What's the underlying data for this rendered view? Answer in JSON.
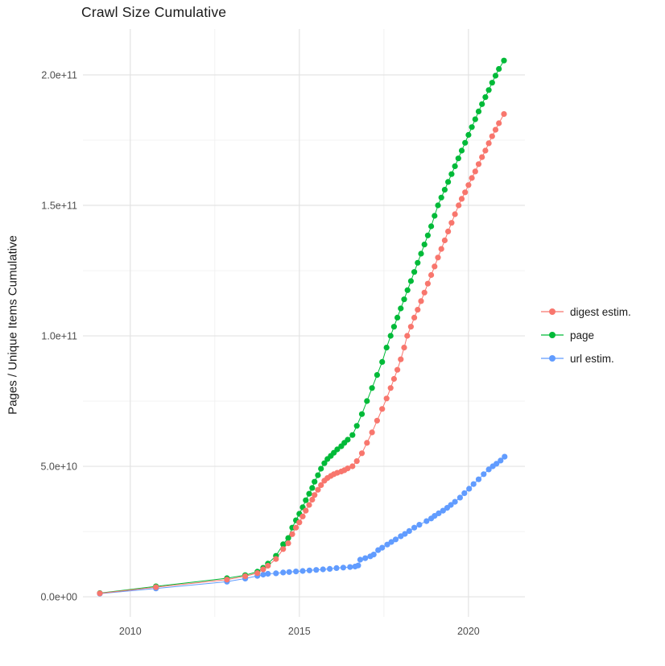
{
  "chart_data": {
    "type": "scatter",
    "title": "Crawl Size Cumulative",
    "ylabel": "Pages / Unique Items Cumulative",
    "xlabel": "",
    "x_major_ticks": [
      2010,
      2015,
      2020
    ],
    "x_tick_labels": [
      "2010",
      "2015",
      "2020"
    ],
    "x_minor_ticks": [
      2012.5,
      2017.5
    ],
    "y_major_ticks_e10": [
      0,
      5,
      10,
      15,
      20
    ],
    "y_tick_labels": [
      "0.0e+00",
      "5.0e+10",
      "1.0e+11",
      "1.5e+11",
      "2.0e+11"
    ],
    "y_minor_ticks_e10": [
      2.5,
      7.5,
      12.5,
      17.5
    ],
    "y_values_unit": "points are [year, cumulative_count / 1e10]",
    "xlim": [
      2008.6,
      2021.67
    ],
    "ylim_e10": [
      -0.77,
      21.76
    ],
    "grid": "major+minor",
    "legend_position": "right",
    "draw_order": [
      1,
      2,
      0
    ],
    "series": [
      {
        "name": "digest estim.",
        "color": "#F8766D",
        "points": [
          [
            2009.1,
            0.13
          ],
          [
            2010.76,
            0.37
          ],
          [
            2012.86,
            0.66
          ],
          [
            2013.4,
            0.79
          ],
          [
            2013.76,
            0.91
          ],
          [
            2013.93,
            1.05
          ],
          [
            2014.07,
            1.19
          ],
          [
            2014.31,
            1.45
          ],
          [
            2014.52,
            1.83
          ],
          [
            2014.67,
            2.05
          ],
          [
            2014.79,
            2.4
          ],
          [
            2014.9,
            2.65
          ],
          [
            2015.0,
            2.85
          ],
          [
            2015.1,
            3.08
          ],
          [
            2015.19,
            3.3
          ],
          [
            2015.29,
            3.52
          ],
          [
            2015.38,
            3.72
          ],
          [
            2015.45,
            3.9
          ],
          [
            2015.55,
            4.1
          ],
          [
            2015.64,
            4.28
          ],
          [
            2015.74,
            4.45
          ],
          [
            2015.83,
            4.55
          ],
          [
            2015.93,
            4.63
          ],
          [
            2016.02,
            4.7
          ],
          [
            2016.12,
            4.75
          ],
          [
            2016.24,
            4.8
          ],
          [
            2016.33,
            4.85
          ],
          [
            2016.43,
            4.92
          ],
          [
            2016.57,
            5.0
          ],
          [
            2016.7,
            5.2
          ],
          [
            2016.85,
            5.5
          ],
          [
            2017.0,
            5.9
          ],
          [
            2017.15,
            6.3
          ],
          [
            2017.3,
            6.75
          ],
          [
            2017.45,
            7.2
          ],
          [
            2017.58,
            7.6
          ],
          [
            2017.7,
            8.0
          ],
          [
            2017.8,
            8.35
          ],
          [
            2017.9,
            8.7
          ],
          [
            2018.0,
            9.1
          ],
          [
            2018.1,
            9.55
          ],
          [
            2018.19,
            10.0
          ],
          [
            2018.3,
            10.35
          ],
          [
            2018.4,
            10.7
          ],
          [
            2018.5,
            11.0
          ],
          [
            2018.6,
            11.33
          ],
          [
            2018.7,
            11.66
          ],
          [
            2018.8,
            12.0
          ],
          [
            2018.9,
            12.33
          ],
          [
            2019.0,
            12.66
          ],
          [
            2019.1,
            13.0
          ],
          [
            2019.2,
            13.33
          ],
          [
            2019.3,
            13.66
          ],
          [
            2019.4,
            14.0
          ],
          [
            2019.5,
            14.33
          ],
          [
            2019.6,
            14.66
          ],
          [
            2019.71,
            15.0
          ],
          [
            2019.8,
            15.25
          ],
          [
            2019.9,
            15.5
          ],
          [
            2020.0,
            15.78
          ],
          [
            2020.1,
            16.05
          ],
          [
            2020.2,
            16.3
          ],
          [
            2020.3,
            16.58
          ],
          [
            2020.4,
            16.85
          ],
          [
            2020.5,
            17.1
          ],
          [
            2020.6,
            17.38
          ],
          [
            2020.7,
            17.65
          ],
          [
            2020.8,
            17.9
          ],
          [
            2020.9,
            18.15
          ],
          [
            2021.05,
            18.5
          ]
        ]
      },
      {
        "name": "page",
        "color": "#00BA38",
        "points": [
          [
            2009.1,
            0.14
          ],
          [
            2010.76,
            0.4
          ],
          [
            2012.86,
            0.71
          ],
          [
            2013.4,
            0.83
          ],
          [
            2013.76,
            0.96
          ],
          [
            2013.93,
            1.11
          ],
          [
            2014.07,
            1.27
          ],
          [
            2014.31,
            1.57
          ],
          [
            2014.52,
            2.01
          ],
          [
            2014.67,
            2.25
          ],
          [
            2014.79,
            2.65
          ],
          [
            2014.9,
            2.93
          ],
          [
            2015.0,
            3.18
          ],
          [
            2015.1,
            3.43
          ],
          [
            2015.19,
            3.7
          ],
          [
            2015.29,
            3.95
          ],
          [
            2015.38,
            4.17
          ],
          [
            2015.45,
            4.41
          ],
          [
            2015.55,
            4.66
          ],
          [
            2015.64,
            4.91
          ],
          [
            2015.74,
            5.12
          ],
          [
            2015.83,
            5.28
          ],
          [
            2015.93,
            5.4
          ],
          [
            2016.02,
            5.52
          ],
          [
            2016.12,
            5.65
          ],
          [
            2016.24,
            5.77
          ],
          [
            2016.33,
            5.9
          ],
          [
            2016.43,
            6.02
          ],
          [
            2016.57,
            6.2
          ],
          [
            2016.7,
            6.55
          ],
          [
            2016.85,
            7.0
          ],
          [
            2017.0,
            7.5
          ],
          [
            2017.15,
            8.0
          ],
          [
            2017.3,
            8.5
          ],
          [
            2017.45,
            9.0
          ],
          [
            2017.58,
            9.55
          ],
          [
            2017.7,
            10.0
          ],
          [
            2017.8,
            10.35
          ],
          [
            2017.9,
            10.7
          ],
          [
            2018.0,
            11.05
          ],
          [
            2018.1,
            11.4
          ],
          [
            2018.2,
            11.75
          ],
          [
            2018.3,
            12.1
          ],
          [
            2018.4,
            12.45
          ],
          [
            2018.5,
            12.8
          ],
          [
            2018.6,
            13.15
          ],
          [
            2018.7,
            13.5
          ],
          [
            2018.8,
            13.85
          ],
          [
            2018.9,
            14.2
          ],
          [
            2019.0,
            14.6
          ],
          [
            2019.1,
            15.0
          ],
          [
            2019.2,
            15.3
          ],
          [
            2019.3,
            15.6
          ],
          [
            2019.4,
            15.9
          ],
          [
            2019.5,
            16.2
          ],
          [
            2019.6,
            16.5
          ],
          [
            2019.7,
            16.8
          ],
          [
            2019.8,
            17.1
          ],
          [
            2019.9,
            17.4
          ],
          [
            2020.0,
            17.7
          ],
          [
            2020.1,
            18.0
          ],
          [
            2020.2,
            18.3
          ],
          [
            2020.3,
            18.6
          ],
          [
            2020.4,
            18.88
          ],
          [
            2020.5,
            19.15
          ],
          [
            2020.6,
            19.42
          ],
          [
            2020.7,
            19.7
          ],
          [
            2020.8,
            19.97
          ],
          [
            2020.9,
            20.23
          ],
          [
            2021.05,
            20.55
          ]
        ]
      },
      {
        "name": "url estim.",
        "color": "#619CFF",
        "points": [
          [
            2009.1,
            0.12
          ],
          [
            2010.76,
            0.32
          ],
          [
            2012.86,
            0.58
          ],
          [
            2013.4,
            0.7
          ],
          [
            2013.76,
            0.8
          ],
          [
            2013.93,
            0.85
          ],
          [
            2014.07,
            0.88
          ],
          [
            2014.31,
            0.9
          ],
          [
            2014.52,
            0.93
          ],
          [
            2014.7,
            0.95
          ],
          [
            2014.9,
            0.97
          ],
          [
            2015.1,
            0.99
          ],
          [
            2015.3,
            1.01
          ],
          [
            2015.5,
            1.03
          ],
          [
            2015.7,
            1.05
          ],
          [
            2015.9,
            1.07
          ],
          [
            2016.1,
            1.1
          ],
          [
            2016.3,
            1.12
          ],
          [
            2016.5,
            1.14
          ],
          [
            2016.65,
            1.16
          ],
          [
            2016.74,
            1.2
          ],
          [
            2016.8,
            1.42
          ],
          [
            2016.95,
            1.48
          ],
          [
            2017.1,
            1.55
          ],
          [
            2017.2,
            1.62
          ],
          [
            2017.33,
            1.79
          ],
          [
            2017.45,
            1.88
          ],
          [
            2017.6,
            2.0
          ],
          [
            2017.72,
            2.1
          ],
          [
            2017.85,
            2.2
          ],
          [
            2018.0,
            2.32
          ],
          [
            2018.12,
            2.41
          ],
          [
            2018.25,
            2.52
          ],
          [
            2018.4,
            2.65
          ],
          [
            2018.55,
            2.76
          ],
          [
            2018.76,
            2.9
          ],
          [
            2018.9,
            3.0
          ],
          [
            2019.0,
            3.1
          ],
          [
            2019.12,
            3.2
          ],
          [
            2019.25,
            3.3
          ],
          [
            2019.37,
            3.41
          ],
          [
            2019.48,
            3.52
          ],
          [
            2019.6,
            3.64
          ],
          [
            2019.75,
            3.8
          ],
          [
            2019.88,
            3.97
          ],
          [
            2020.02,
            4.14
          ],
          [
            2020.15,
            4.32
          ],
          [
            2020.3,
            4.5
          ],
          [
            2020.45,
            4.7
          ],
          [
            2020.6,
            4.88
          ],
          [
            2020.72,
            5.0
          ],
          [
            2020.83,
            5.1
          ],
          [
            2020.95,
            5.22
          ],
          [
            2021.07,
            5.37
          ]
        ]
      }
    ],
    "style": {
      "grid_major_color": "#e3e3e3",
      "grid_minor_color": "#f0f0f0",
      "tick_label_color": "#4d4d4d",
      "title_color": "#1a1a1a",
      "background": "#ffffff"
    }
  }
}
